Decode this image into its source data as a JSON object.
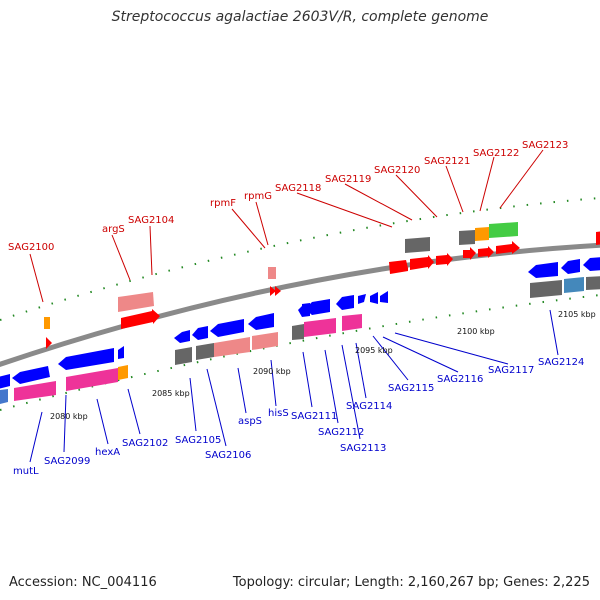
{
  "title": "Streptococcus agalactiae 2603V/R, complete genome",
  "footer": {
    "accession": "Accession: NC_004116",
    "stats": "Topology: circular; Length: 2,160,267 bp; Genes: 2,225"
  },
  "kbp_labels": [
    "2080 kbp",
    "2085 kbp",
    "2090 kbp",
    "2095 kbp",
    "2100 kbp",
    "2105 kbp"
  ],
  "top_labels": [
    "SAG2100",
    "argS",
    "SAG2104",
    "rpmF",
    "rpmG",
    "SAG2118",
    "SAG2119",
    "SAG2120",
    "SAG2121",
    "SAG2122",
    "SAG2123"
  ],
  "bottom_labels": [
    "mutL",
    "SAG2099",
    "hexA",
    "SAG2102",
    "SAG2105",
    "SAG2106",
    "aspS",
    "hisS",
    "SAG2111",
    "SAG2112",
    "SAG2113",
    "SAG2114",
    "SAG2115",
    "SAG2116",
    "SAG2117",
    "SAG2124"
  ],
  "colors": {
    "backbone": "#909090",
    "gene_forward": "#ff0000",
    "gene_reverse": "#0000ff",
    "label_top": "#cc0000",
    "label_bottom": "#0000cc",
    "cog_pink": "#ee3399",
    "cog_salmon": "#ee8888",
    "cog_gray": "#666666",
    "cog_green": "#44cc44",
    "cog_orange": "#ff9900",
    "cog_steel": "#4488bb",
    "tick": "#228822"
  }
}
